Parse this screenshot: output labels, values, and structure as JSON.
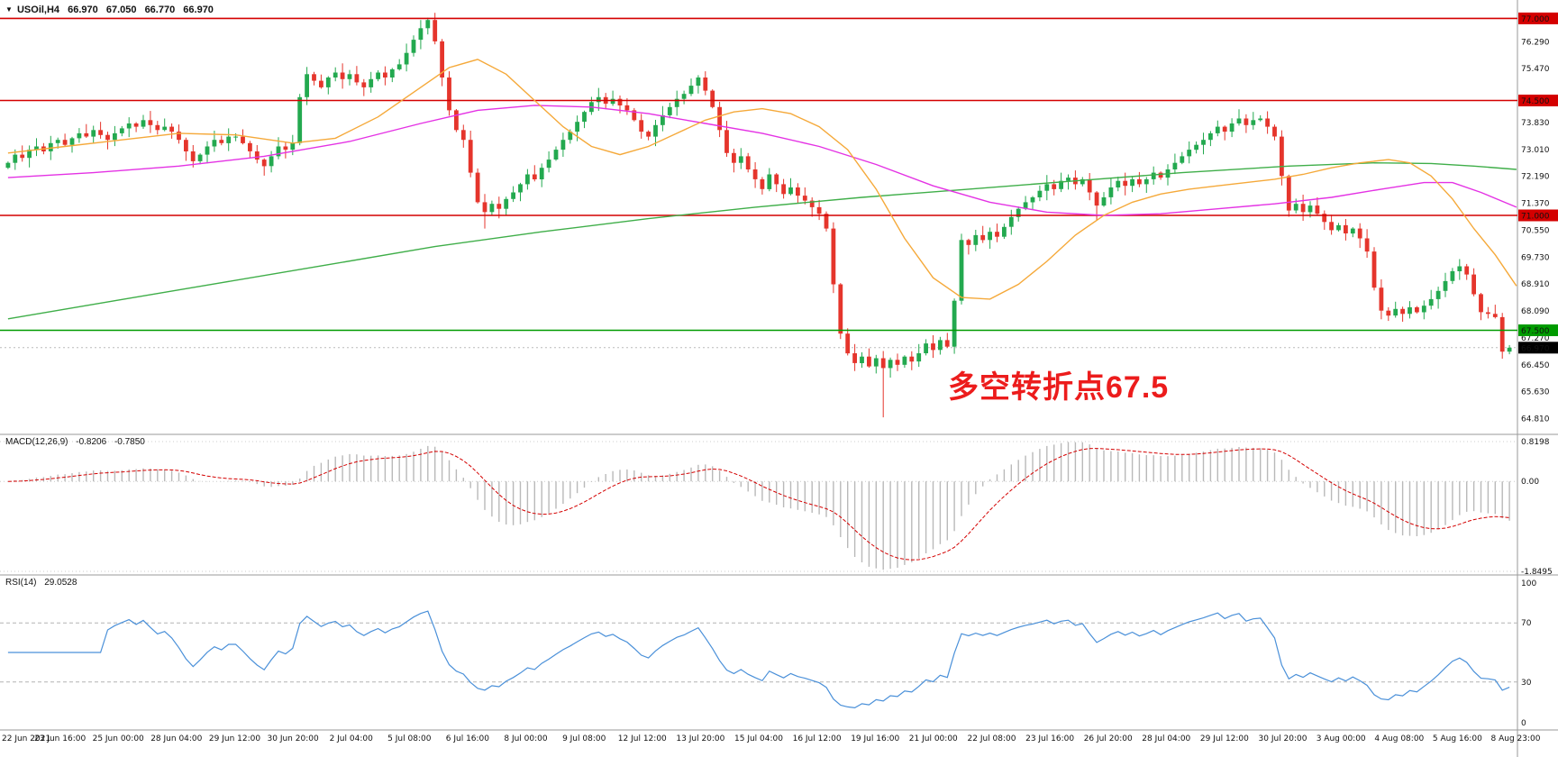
{
  "icons": {
    "dropdown": "▼"
  },
  "header": {
    "symbol": "USOil,H4",
    "open": "66.970",
    "high": "67.050",
    "low": "66.770",
    "close": "66.970"
  },
  "annotation": {
    "text": "多空转折点67.5",
    "color": "#ec1c1c"
  },
  "chart_data": {
    "type": "candlestick",
    "symbol": "USOil",
    "timeframe": "H4",
    "x_labels": [
      "22 Jun 2021",
      "23 Jun 16:00",
      "25 Jun 00:00",
      "28 Jun 04:00",
      "29 Jun 12:00",
      "30 Jun 20:00",
      "2 Jul 04:00",
      "5 Jul 08:00",
      "6 Jul 16:00",
      "8 Jul 00:00",
      "9 Jul 08:00",
      "12 Jul 12:00",
      "13 Jul 20:00",
      "15 Jul 04:00",
      "16 Jul 12:00",
      "19 Jul 16:00",
      "21 Jul 00:00",
      "22 Jul 08:00",
      "23 Jul 16:00",
      "26 Jul 20:00",
      "28 Jul 04:00",
      "29 Jul 12:00",
      "30 Jul 20:00",
      "3 Aug 00:00",
      "4 Aug 08:00",
      "5 Aug 16:00",
      "8 Aug 23:00"
    ],
    "price_axis": {
      "range": [
        64.55,
        77.45
      ],
      "ticks": [
        {
          "price": 76.29,
          "label": "76.290"
        },
        {
          "price": 75.47,
          "label": "75.470"
        },
        {
          "price": 73.83,
          "label": "73.830"
        },
        {
          "price": 73.01,
          "label": "73.010"
        },
        {
          "price": 72.19,
          "label": "72.190"
        },
        {
          "price": 71.37,
          "label": "71.370"
        },
        {
          "price": 70.55,
          "label": "70.550"
        },
        {
          "price": 69.73,
          "label": "69.730"
        },
        {
          "price": 68.91,
          "label": "68.910"
        },
        {
          "price": 68.09,
          "label": "68.090"
        },
        {
          "price": 67.27,
          "label": "67.270"
        },
        {
          "price": 66.45,
          "label": "66.450"
        },
        {
          "price": 65.63,
          "label": "65.630"
        },
        {
          "price": 64.81,
          "label": "64.810"
        }
      ],
      "hlines": [
        {
          "price": 77.0,
          "label": "77.000",
          "color": "#d40000"
        },
        {
          "price": 74.5,
          "label": "74.500",
          "color": "#d40000"
        },
        {
          "price": 71.0,
          "label": "71.000",
          "color": "#d40000"
        },
        {
          "price": 67.5,
          "label": "67.500",
          "color": "#009b00"
        }
      ],
      "current": {
        "price": 66.97,
        "label": "66.970",
        "color": "#000000"
      }
    },
    "candles": {
      "first_open": 72.45,
      "closes": [
        72.6,
        72.85,
        72.75,
        73.0,
        73.1,
        72.95,
        73.2,
        73.3,
        73.15,
        73.35,
        73.5,
        73.4,
        73.6,
        73.45,
        73.3,
        73.5,
        73.65,
        73.8,
        73.7,
        73.9,
        73.75,
        73.6,
        73.7,
        73.55,
        73.3,
        72.95,
        72.65,
        72.85,
        73.1,
        73.3,
        73.2,
        73.4,
        73.4,
        73.2,
        72.95,
        72.7,
        72.5,
        72.8,
        73.1,
        73.0,
        73.2,
        74.6,
        75.3,
        75.1,
        74.9,
        75.2,
        75.35,
        75.15,
        75.3,
        75.05,
        74.9,
        75.15,
        75.35,
        75.2,
        75.45,
        75.6,
        75.95,
        76.35,
        76.7,
        76.95,
        76.3,
        75.2,
        74.2,
        73.6,
        73.3,
        72.3,
        71.4,
        71.1,
        71.35,
        71.2,
        71.5,
        71.7,
        71.95,
        72.25,
        72.1,
        72.45,
        72.7,
        73.0,
        73.3,
        73.55,
        73.85,
        74.15,
        74.45,
        74.6,
        74.4,
        74.55,
        74.35,
        74.2,
        73.9,
        73.55,
        73.4,
        73.75,
        74.05,
        74.3,
        74.55,
        74.7,
        74.95,
        75.2,
        74.8,
        74.3,
        73.6,
        72.9,
        72.6,
        72.8,
        72.4,
        72.1,
        71.8,
        72.25,
        71.95,
        71.65,
        71.85,
        71.6,
        71.45,
        71.25,
        71.05,
        70.6,
        68.9,
        67.4,
        66.8,
        66.5,
        66.7,
        66.4,
        66.65,
        66.35,
        66.6,
        66.45,
        66.7,
        66.55,
        66.8,
        67.1,
        66.9,
        67.2,
        67.0,
        68.4,
        70.25,
        70.1,
        70.4,
        70.25,
        70.5,
        70.35,
        70.65,
        70.95,
        71.2,
        71.4,
        71.55,
        71.75,
        71.95,
        71.8,
        72.05,
        72.15,
        71.95,
        72.1,
        71.7,
        71.3,
        71.55,
        71.85,
        72.05,
        71.9,
        72.1,
        71.95,
        72.1,
        72.3,
        72.15,
        72.4,
        72.6,
        72.8,
        73.0,
        73.15,
        73.3,
        73.5,
        73.7,
        73.55,
        73.8,
        73.95,
        73.75,
        73.9,
        73.95,
        73.7,
        73.4,
        72.2,
        71.15,
        71.35,
        71.1,
        71.3,
        71.05,
        70.8,
        70.55,
        70.7,
        70.45,
        70.6,
        70.3,
        69.9,
        68.8,
        68.1,
        67.95,
        68.15,
        68.0,
        68.2,
        68.05,
        68.25,
        68.45,
        68.7,
        69.0,
        69.3,
        69.45,
        69.2,
        68.6,
        68.05,
        68.0,
        67.9,
        66.85,
        66.97
      ],
      "overrides": {
        "59": {
          "high": 77.02
        },
        "67": {
          "low": 70.6
        },
        "123": {
          "low": 64.85
        },
        "153": {
          "low": 70.85
        },
        "211": {
          "high": 67.05,
          "low": 66.77
        }
      }
    },
    "moving_averages": [
      {
        "name": "ma-slow",
        "color": "#3fae49",
        "points": [
          [
            0,
            67.85
          ],
          [
            15,
            68.4
          ],
          [
            30,
            68.95
          ],
          [
            45,
            69.5
          ],
          [
            60,
            70.05
          ],
          [
            75,
            70.5
          ],
          [
            90,
            70.9
          ],
          [
            105,
            71.25
          ],
          [
            120,
            71.55
          ],
          [
            135,
            71.8
          ],
          [
            150,
            72.05
          ],
          [
            165,
            72.3
          ],
          [
            180,
            72.5
          ],
          [
            192,
            72.6
          ],
          [
            200,
            72.58
          ],
          [
            206,
            72.5
          ],
          [
            212,
            72.4
          ]
        ]
      },
      {
        "name": "ma-mid",
        "color": "#e432e4",
        "points": [
          [
            0,
            72.15
          ],
          [
            12,
            72.3
          ],
          [
            24,
            72.5
          ],
          [
            36,
            72.8
          ],
          [
            48,
            73.25
          ],
          [
            58,
            73.8
          ],
          [
            66,
            74.2
          ],
          [
            74,
            74.35
          ],
          [
            82,
            74.3
          ],
          [
            90,
            74.1
          ],
          [
            98,
            73.8
          ],
          [
            106,
            73.5
          ],
          [
            114,
            73.1
          ],
          [
            122,
            72.55
          ],
          [
            130,
            71.9
          ],
          [
            138,
            71.4
          ],
          [
            146,
            71.1
          ],
          [
            154,
            71.0
          ],
          [
            162,
            71.05
          ],
          [
            170,
            71.2
          ],
          [
            178,
            71.35
          ],
          [
            186,
            71.55
          ],
          [
            193,
            71.8
          ],
          [
            199,
            72.0
          ],
          [
            203,
            72.0
          ],
          [
            207,
            71.7
          ],
          [
            212,
            71.25
          ]
        ]
      },
      {
        "name": "ma-fast",
        "color": "#f5a93a",
        "points": [
          [
            0,
            72.9
          ],
          [
            8,
            73.1
          ],
          [
            16,
            73.3
          ],
          [
            24,
            73.5
          ],
          [
            32,
            73.45
          ],
          [
            40,
            73.2
          ],
          [
            46,
            73.35
          ],
          [
            52,
            74.0
          ],
          [
            58,
            74.9
          ],
          [
            62,
            75.5
          ],
          [
            66,
            75.75
          ],
          [
            70,
            75.3
          ],
          [
            74,
            74.5
          ],
          [
            78,
            73.7
          ],
          [
            82,
            73.1
          ],
          [
            86,
            72.85
          ],
          [
            90,
            73.1
          ],
          [
            94,
            73.5
          ],
          [
            98,
            73.9
          ],
          [
            102,
            74.15
          ],
          [
            106,
            74.25
          ],
          [
            110,
            74.1
          ],
          [
            114,
            73.7
          ],
          [
            118,
            73.0
          ],
          [
            122,
            71.8
          ],
          [
            126,
            70.3
          ],
          [
            130,
            69.1
          ],
          [
            134,
            68.5
          ],
          [
            138,
            68.45
          ],
          [
            142,
            68.9
          ],
          [
            146,
            69.6
          ],
          [
            150,
            70.4
          ],
          [
            154,
            71.0
          ],
          [
            158,
            71.4
          ],
          [
            162,
            71.65
          ],
          [
            166,
            71.8
          ],
          [
            170,
            71.9
          ],
          [
            174,
            72.0
          ],
          [
            178,
            72.1
          ],
          [
            182,
            72.25
          ],
          [
            186,
            72.45
          ],
          [
            190,
            72.6
          ],
          [
            194,
            72.7
          ],
          [
            197,
            72.6
          ],
          [
            200,
            72.2
          ],
          [
            203,
            71.5
          ],
          [
            206,
            70.6
          ],
          [
            209,
            69.8
          ],
          [
            212,
            68.85
          ]
        ]
      }
    ],
    "macd": {
      "label": "MACD(12,26,9)",
      "value_main": "-0.8206",
      "value_signal": "-0.7850",
      "params": [
        12,
        26,
        9
      ],
      "range": [
        -1.8495,
        0.8198
      ],
      "axis": [
        {
          "v": 0.8198,
          "label": "0.8198"
        },
        {
          "v": 0,
          "label": "0.00"
        },
        {
          "v": -1.8495,
          "label": "-1.8495"
        }
      ]
    },
    "rsi": {
      "label": "RSI(14)",
      "value": "29.0528",
      "period": 14,
      "range": [
        0,
        100
      ],
      "levels": [
        70,
        30
      ],
      "axis": [
        {
          "v": 100,
          "label": "100"
        },
        {
          "v": 70,
          "label": "70"
        },
        {
          "v": 30,
          "label": "30"
        },
        {
          "v": 0,
          "label": "0"
        }
      ]
    },
    "colors": {
      "up": "#23a94f",
      "down": "#e5352c",
      "macd_hist": "#b9b9b9",
      "macd_signal": "#d40000",
      "rsi_line": "#4a90d9",
      "grid": "#b4b4b4",
      "separator": "#9a9a9a"
    }
  }
}
